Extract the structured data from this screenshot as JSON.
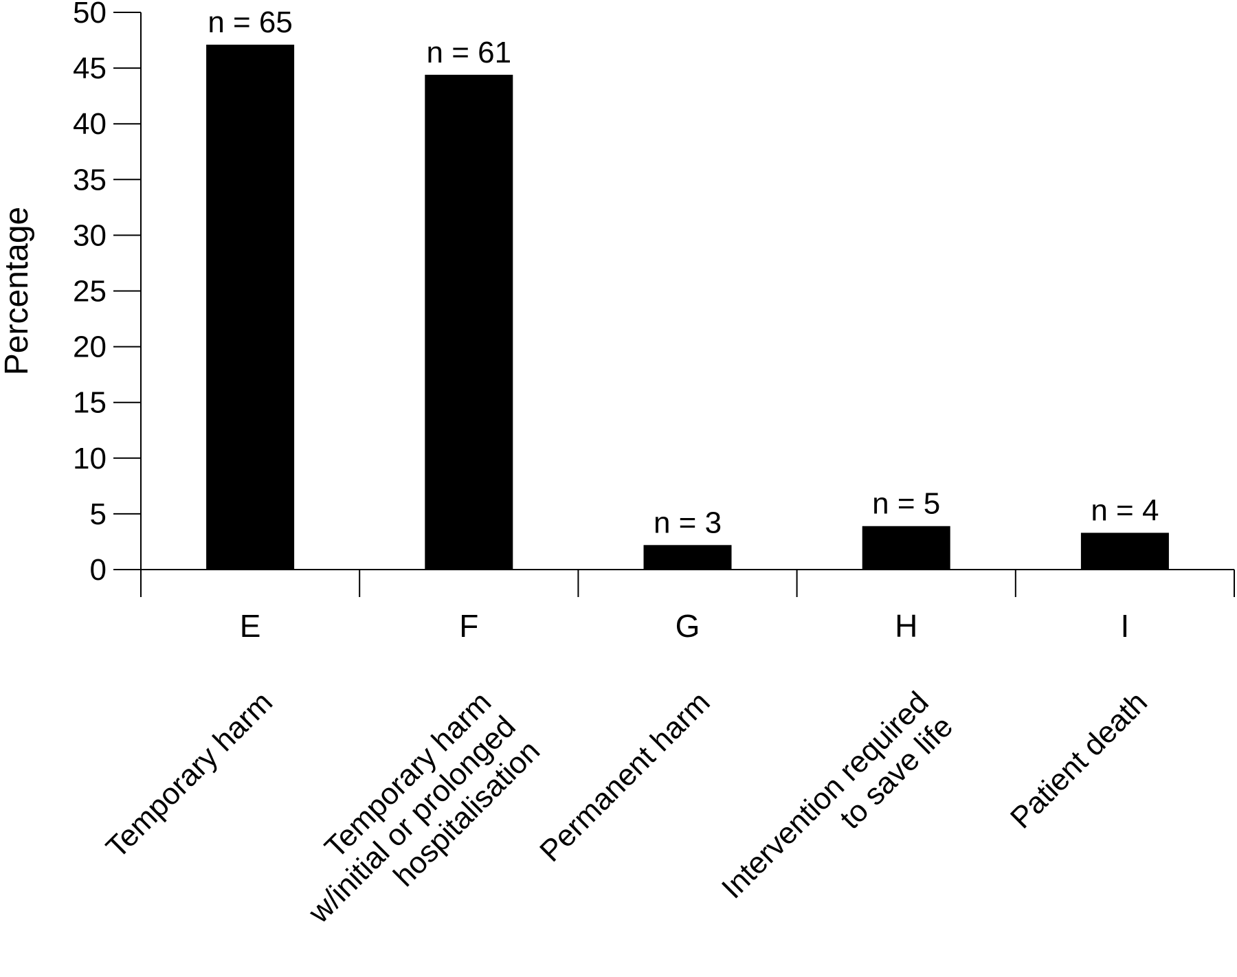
{
  "chart_data": {
    "type": "bar",
    "title": "",
    "xlabel": "",
    "ylabel": "Percentage",
    "ylim": [
      0,
      50
    ],
    "yticks": [
      0,
      5,
      10,
      15,
      20,
      25,
      30,
      35,
      40,
      45,
      50
    ],
    "grid": false,
    "legend": "none",
    "bar_color": "#000000",
    "categories": [
      "E",
      "F",
      "G",
      "H",
      "I"
    ],
    "descriptions": [
      [
        "Temporary harm"
      ],
      [
        "Temporary harm",
        "w/initial or prolonged",
        "hospitalisation"
      ],
      [
        "Permanent harm"
      ],
      [
        "Intervention required",
        "to save life"
      ],
      [
        "Patient death"
      ]
    ],
    "values": [
      47.1,
      44.4,
      2.2,
      3.9,
      3.3
    ],
    "data_labels": [
      "n = 65",
      "n = 61",
      "n = 3",
      "n = 5",
      "n = 4"
    ]
  }
}
